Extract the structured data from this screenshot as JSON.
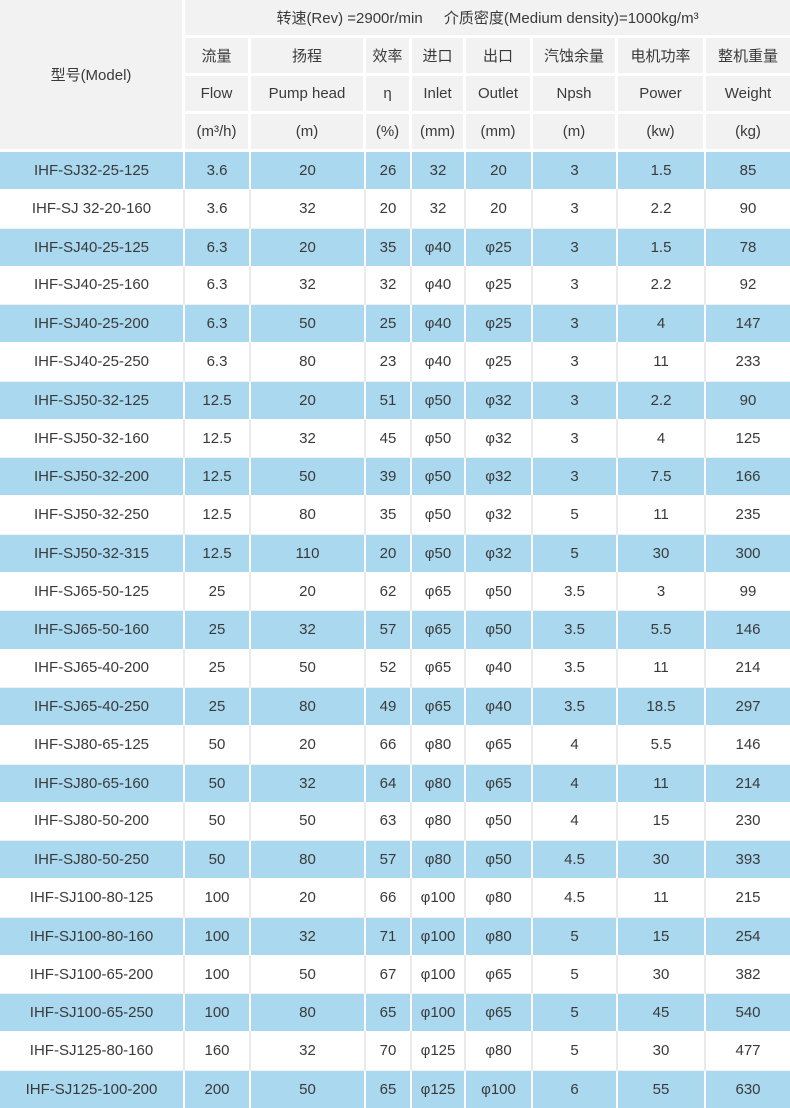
{
  "table": {
    "model_header": "型号(Model)",
    "conditions": {
      "rev": "转速(Rev) =2900r/min",
      "density": "介质密度(Medium density)=1000kg/m³"
    },
    "columns": [
      {
        "cn": "流量",
        "en": "Flow",
        "unit": "(m³/h)"
      },
      {
        "cn": "扬程",
        "en": "Pump head",
        "unit": "(m)"
      },
      {
        "cn": "效率",
        "en": "η",
        "unit": "(%)"
      },
      {
        "cn": "进口",
        "en": "Inlet",
        "unit": "(mm)"
      },
      {
        "cn": "出口",
        "en": "Outlet",
        "unit": "(mm)"
      },
      {
        "cn": "汽蚀余量",
        "en": "Npsh",
        "unit": "(m)"
      },
      {
        "cn": "电机功率",
        "en": "Power",
        "unit": "(kw)"
      },
      {
        "cn": "整机重量",
        "en": "Weight",
        "unit": "(kg)"
      }
    ],
    "rows": [
      [
        "IHF-SJ32-25-125",
        "3.6",
        "20",
        "26",
        "32",
        "20",
        "3",
        "1.5",
        "85"
      ],
      [
        "IHF-SJ 32-20-160",
        "3.6",
        "32",
        "20",
        "32",
        "20",
        "3",
        "2.2",
        "90"
      ],
      [
        "IHF-SJ40-25-125",
        "6.3",
        "20",
        "35",
        "φ40",
        "φ25",
        "3",
        "1.5",
        "78"
      ],
      [
        "IHF-SJ40-25-160",
        "6.3",
        "32",
        "32",
        "φ40",
        "φ25",
        "3",
        "2.2",
        "92"
      ],
      [
        "IHF-SJ40-25-200",
        "6.3",
        "50",
        "25",
        "φ40",
        "φ25",
        "3",
        "4",
        "147"
      ],
      [
        "IHF-SJ40-25-250",
        "6.3",
        "80",
        "23",
        "φ40",
        "φ25",
        "3",
        "11",
        "233"
      ],
      [
        "IHF-SJ50-32-125",
        "12.5",
        "20",
        "51",
        "φ50",
        "φ32",
        "3",
        "2.2",
        "90"
      ],
      [
        "IHF-SJ50-32-160",
        "12.5",
        "32",
        "45",
        "φ50",
        "φ32",
        "3",
        "4",
        "125"
      ],
      [
        "IHF-SJ50-32-200",
        "12.5",
        "50",
        "39",
        "φ50",
        "φ32",
        "3",
        "7.5",
        "166"
      ],
      [
        "IHF-SJ50-32-250",
        "12.5",
        "80",
        "35",
        "φ50",
        "φ32",
        "5",
        "11",
        "235"
      ],
      [
        "IHF-SJ50-32-315",
        "12.5",
        "110",
        "20",
        "φ50",
        "φ32",
        "5",
        "30",
        "300"
      ],
      [
        "IHF-SJ65-50-125",
        "25",
        "20",
        "62",
        "φ65",
        "φ50",
        "3.5",
        "3",
        "99"
      ],
      [
        "IHF-SJ65-50-160",
        "25",
        "32",
        "57",
        "φ65",
        "φ50",
        "3.5",
        "5.5",
        "146"
      ],
      [
        "IHF-SJ65-40-200",
        "25",
        "50",
        "52",
        "φ65",
        "φ40",
        "3.5",
        "11",
        "214"
      ],
      [
        "IHF-SJ65-40-250",
        "25",
        "80",
        "49",
        "φ65",
        "φ40",
        "3.5",
        "18.5",
        "297"
      ],
      [
        "IHF-SJ80-65-125",
        "50",
        "20",
        "66",
        "φ80",
        "φ65",
        "4",
        "5.5",
        "146"
      ],
      [
        "IHF-SJ80-65-160",
        "50",
        "32",
        "64",
        "φ80",
        "φ65",
        "4",
        "11",
        "214"
      ],
      [
        "IHF-SJ80-50-200",
        "50",
        "50",
        "63",
        "φ80",
        "φ50",
        "4",
        "15",
        "230"
      ],
      [
        "IHF-SJ80-50-250",
        "50",
        "80",
        "57",
        "φ80",
        "φ50",
        "4.5",
        "30",
        "393"
      ],
      [
        "IHF-SJ100-80-125",
        "100",
        "20",
        "66",
        "φ100",
        "φ80",
        "4.5",
        "11",
        "215"
      ],
      [
        "IHF-SJ100-80-160",
        "100",
        "32",
        "71",
        "φ100",
        "φ80",
        "5",
        "15",
        "254"
      ],
      [
        "IHF-SJ100-65-200",
        "100",
        "50",
        "67",
        "φ100",
        "φ65",
        "5",
        "30",
        "382"
      ],
      [
        "IHF-SJ100-65-250",
        "100",
        "80",
        "65",
        "φ100",
        "φ65",
        "5",
        "45",
        "540"
      ],
      [
        "IHF-SJ125-80-160",
        "160",
        "32",
        "70",
        "φ125",
        "φ80",
        "5",
        "30",
        "477"
      ],
      [
        "IHF-SJ125-100-200",
        "200",
        "50",
        "65",
        "φ125",
        "φ100",
        "6",
        "55",
        "630"
      ]
    ],
    "colors": {
      "row_blue": "#a9d8ef",
      "row_white": "#ffffff",
      "header_gray": "#f2f2f2",
      "text": "#3a3a3a"
    }
  }
}
